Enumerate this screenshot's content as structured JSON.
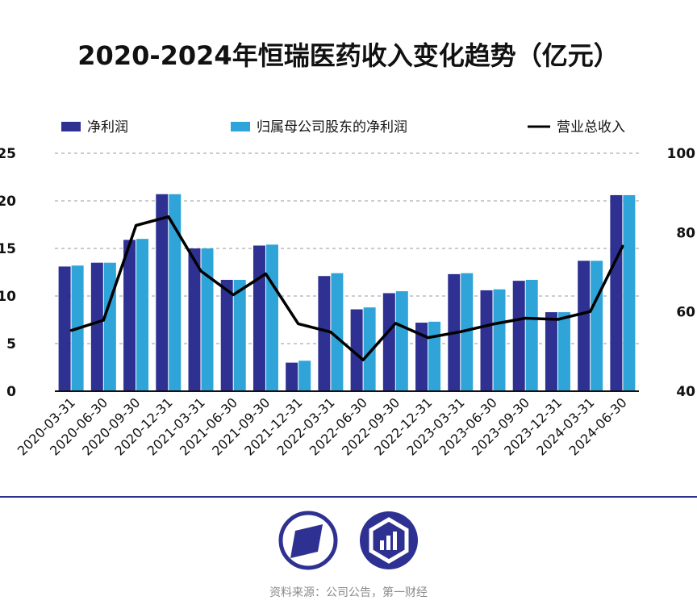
{
  "title": "2020-2024年恒瑞医药收入变化趋势（亿元）",
  "source": "资料来源：公司公告，第一财经",
  "colors": {
    "net_profit": "#2e3192",
    "parent_net_profit": "#2fa4d8",
    "revenue": "#000000",
    "divider": "#2e3192"
  },
  "chart_data": {
    "type": "bar",
    "categories": [
      "2020-03-31",
      "2020-06-30",
      "2020-09-30",
      "2020-12-31",
      "2021-03-31",
      "2021-06-30",
      "2021-09-30",
      "2021-12-31",
      "2022-03-31",
      "2022-06-30",
      "2022-09-30",
      "2022-12-31",
      "2023-03-31",
      "2023-06-30",
      "2023-09-30",
      "2023-12-31",
      "2024-03-31",
      "2024-06-30"
    ],
    "legend": [
      "净利润",
      "归属母公司股东的净利润",
      "营业总收入"
    ],
    "series": [
      {
        "name": "净利润",
        "type": "bar",
        "axis": "left",
        "values": [
          13.1,
          13.5,
          15.9,
          20.7,
          15.0,
          11.7,
          15.3,
          3.0,
          12.1,
          8.6,
          10.3,
          7.2,
          12.3,
          10.6,
          11.6,
          8.3,
          13.7,
          20.6
        ]
      },
      {
        "name": "归属母公司股东的净利润",
        "type": "bar",
        "axis": "left",
        "values": [
          13.2,
          13.5,
          16.0,
          20.7,
          15.0,
          11.7,
          15.4,
          3.2,
          12.4,
          8.8,
          10.5,
          7.3,
          12.4,
          10.7,
          11.7,
          8.3,
          13.7,
          20.6
        ]
      },
      {
        "name": "营业总收入",
        "type": "line",
        "axis": "right",
        "values": [
          55.3,
          57.9,
          81.8,
          84.0,
          70.3,
          64.3,
          69.6,
          57.0,
          54.9,
          47.9,
          57.1,
          53.5,
          55.0,
          56.9,
          58.4,
          58.1,
          60.1,
          76.6
        ]
      }
    ],
    "ylim_left": [
      0,
      25
    ],
    "yticks_left": [
      0,
      5,
      10,
      15,
      20,
      25
    ],
    "ylim_right": [
      40,
      100
    ],
    "yticks_right": [
      40,
      60,
      80,
      100
    ],
    "grid": "horizontal dashed",
    "legend_position": "top"
  }
}
